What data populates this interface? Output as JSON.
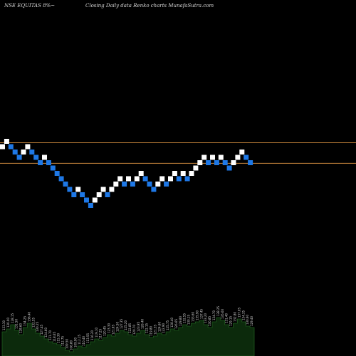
{
  "header": {
    "left": "NSE EQUITAS 8%~",
    "center": "Closing Daily data  Renko  charts MunafaSutra.com"
  },
  "colors": {
    "up": "#ffffff",
    "down": "#1e78e6",
    "ref_line": "#c8863c",
    "volume_fill": "#0c2a0c",
    "volume_stroke": "#1e5a1e",
    "volume_text": "#d8d8d8"
  },
  "chart_data": {
    "type": "renko",
    "reference_lines": [
      195.1,
      180.5
    ],
    "bricks": [
      {
        "dir": "up",
        "top": 194.1
      },
      {
        "dir": "up",
        "top": 197.9
      },
      {
        "dir": "down",
        "top": 194.1
      },
      {
        "dir": "down",
        "top": 190.3
      },
      {
        "dir": "down",
        "top": 186.5
      },
      {
        "dir": "up",
        "top": 190.3
      },
      {
        "dir": "up",
        "top": 194.1
      },
      {
        "dir": "down",
        "top": 190.3
      },
      {
        "dir": "down",
        "top": 186.5
      },
      {
        "dir": "down",
        "top": 182.7
      },
      {
        "dir": "up",
        "top": 186.5
      },
      {
        "dir": "down",
        "top": 182.7
      },
      {
        "dir": "down",
        "top": 178.9
      },
      {
        "dir": "down",
        "top": 175.1
      },
      {
        "dir": "down",
        "top": 171.3
      },
      {
        "dir": "down",
        "top": 167.5
      },
      {
        "dir": "down",
        "top": 163.7
      },
      {
        "dir": "down",
        "top": 159.9
      },
      {
        "dir": "up",
        "top": 163.7
      },
      {
        "dir": "down",
        "top": 159.9
      },
      {
        "dir": "down",
        "top": 156.1
      },
      {
        "dir": "down",
        "top": 152.3
      },
      {
        "dir": "up",
        "top": 156.1
      },
      {
        "dir": "up",
        "top": 159.9
      },
      {
        "dir": "up",
        "top": 163.7
      },
      {
        "dir": "down",
        "top": 159.9
      },
      {
        "dir": "up",
        "top": 163.7
      },
      {
        "dir": "up",
        "top": 167.5
      },
      {
        "dir": "up",
        "top": 171.3
      },
      {
        "dir": "down",
        "top": 167.5
      },
      {
        "dir": "up",
        "top": 171.3
      },
      {
        "dir": "down",
        "top": 167.5
      },
      {
        "dir": "up",
        "top": 171.3
      },
      {
        "dir": "up",
        "top": 175.1
      },
      {
        "dir": "down",
        "top": 171.3
      },
      {
        "dir": "down",
        "top": 167.5
      },
      {
        "dir": "down",
        "top": 163.7
      },
      {
        "dir": "up",
        "top": 167.5
      },
      {
        "dir": "up",
        "top": 171.3
      },
      {
        "dir": "down",
        "top": 167.5
      },
      {
        "dir": "up",
        "top": 171.3
      },
      {
        "dir": "up",
        "top": 175.1
      },
      {
        "dir": "down",
        "top": 171.3
      },
      {
        "dir": "up",
        "top": 175.1
      },
      {
        "dir": "down",
        "top": 171.3
      },
      {
        "dir": "up",
        "top": 175.1
      },
      {
        "dir": "up",
        "top": 178.9
      },
      {
        "dir": "up",
        "top": 182.7
      },
      {
        "dir": "up",
        "top": 186.5
      },
      {
        "dir": "down",
        "top": 182.7
      },
      {
        "dir": "up",
        "top": 186.5
      },
      {
        "dir": "down",
        "top": 182.7
      },
      {
        "dir": "up",
        "top": 186.5
      },
      {
        "dir": "down",
        "top": 182.7
      },
      {
        "dir": "down",
        "top": 178.9
      },
      {
        "dir": "up",
        "top": 182.7
      },
      {
        "dir": "up",
        "top": 186.5
      },
      {
        "dir": "up",
        "top": 190.3
      },
      {
        "dir": "down",
        "top": 186.5
      },
      {
        "dir": "down",
        "top": 182.7
      }
    ],
    "volume": [
      34,
      38,
      44,
      36,
      30,
      40,
      46,
      38,
      32,
      28,
      24,
      20,
      18,
      16,
      12,
      8,
      6,
      10,
      14,
      12,
      16,
      20,
      24,
      22,
      26,
      30,
      28,
      32,
      36,
      34,
      30,
      28,
      32,
      36,
      30,
      26,
      28,
      32,
      30,
      34,
      38,
      36,
      40,
      44,
      42,
      46,
      48,
      50,
      44,
      40,
      48,
      54,
      50,
      44,
      40,
      46,
      52,
      48,
      42,
      40
    ],
    "data_labels": [
      "133.30",
      "130.00",
      "128.15",
      "131.50",
      "128.60",
      "134.25",
      "136.40",
      "132.55",
      "130.25",
      "127.45",
      "124.60",
      "121.70",
      "118.65",
      "115.30",
      "112.75",
      "109.50",
      "106.80",
      "109.90",
      "112.15",
      "110.40",
      "113.55",
      "116.20",
      "119.10",
      "117.25",
      "120.45",
      "123.30",
      "121.65",
      "124.50",
      "127.35",
      "125.20",
      "122.85",
      "120.70",
      "123.95",
      "126.40",
      "122.15",
      "119.80",
      "121.35",
      "124.60",
      "122.90",
      "125.75",
      "128.40",
      "126.65",
      "129.80",
      "132.55",
      "130.15",
      "133.60",
      "135.90",
      "137.45",
      "133.20",
      "130.85",
      "134.70",
      "138.25",
      "135.60",
      "131.40",
      "129.15",
      "132.80",
      "137.05",
      "134.35",
      "130.60",
      "129.40"
    ]
  }
}
